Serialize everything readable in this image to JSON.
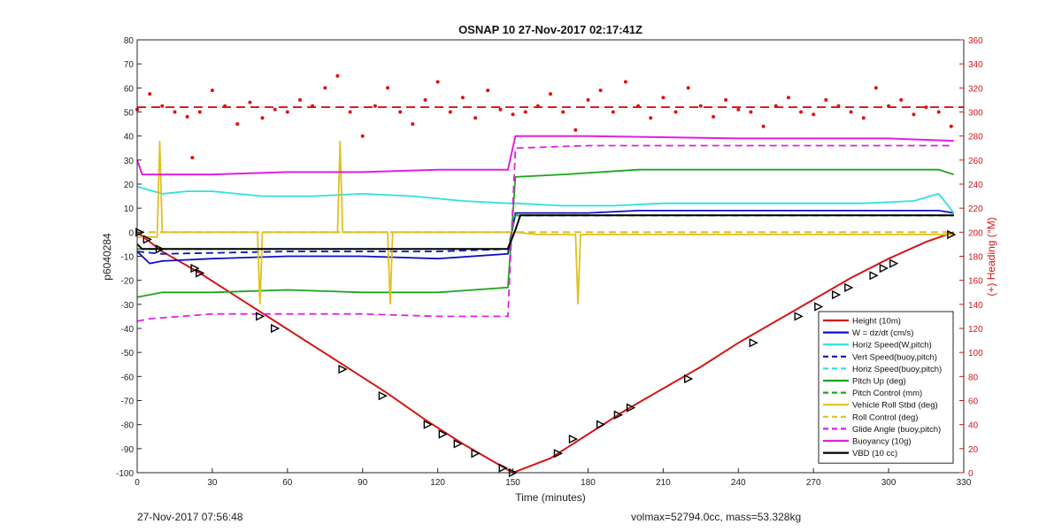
{
  "chart_data": {
    "type": "line",
    "title": "OSNAP 10 27-Nov-2017 02:17:41Z",
    "xlabel": "Time (minutes)",
    "ylabel": "p6040284",
    "ylabel_right": "(+) Heading (°M)",
    "xlim": [
      0,
      330
    ],
    "ylim": [
      -100,
      80
    ],
    "ylim_right": [
      0,
      360
    ],
    "xticks": [
      0,
      30,
      60,
      90,
      120,
      150,
      180,
      210,
      240,
      270,
      300,
      330
    ],
    "yticks": [
      -100,
      -90,
      -80,
      -70,
      -60,
      -50,
      -40,
      -30,
      -20,
      -10,
      0,
      10,
      20,
      30,
      40,
      50,
      60,
      70,
      80
    ],
    "yticks_right": [
      0,
      20,
      40,
      60,
      80,
      100,
      120,
      140,
      160,
      180,
      200,
      220,
      240,
      260,
      280,
      300,
      320,
      340,
      360
    ],
    "grid": false,
    "legend_position": "bottom-right",
    "colors": {
      "height": "#d41616",
      "w": "#1010c0",
      "horiz_speed": "#30e0e0",
      "pitch": "#1ca61c",
      "roll": "#e0c020",
      "glide": "#e020e0",
      "buoyancy": "#e020e0",
      "vbd": "#000000",
      "heading": "#e01010"
    },
    "series": [
      {
        "name": "Height (10m)",
        "key": "height",
        "style": "solid",
        "x": [
          0,
          10,
          25,
          40,
          55,
          70,
          85,
          100,
          115,
          130,
          145,
          150,
          165,
          180,
          195,
          210,
          225,
          240,
          255,
          270,
          285,
          300,
          315,
          326
        ],
        "y": [
          0,
          -8,
          -17,
          -27,
          -37,
          -47,
          -57,
          -67,
          -78,
          -88,
          -97,
          -100,
          -94,
          -84,
          -74,
          -65,
          -56,
          -46,
          -37,
          -28,
          -19,
          -11,
          -4,
          0
        ]
      },
      {
        "name": "W = dz/dt (cm/s)",
        "key": "w",
        "style": "solid",
        "x": [
          0,
          5,
          10,
          30,
          60,
          90,
          120,
          148,
          151,
          160,
          180,
          200,
          220,
          240,
          260,
          280,
          300,
          320,
          326
        ],
        "y": [
          -8,
          -13,
          -12,
          -11,
          -10,
          -10,
          -11,
          -9,
          8,
          8,
          8,
          9,
          9,
          9,
          9,
          9,
          9,
          9,
          8
        ]
      },
      {
        "name": "Horiz Speed(W,pitch)",
        "key": "horiz_speed",
        "style": "solid",
        "x": [
          0,
          10,
          20,
          30,
          50,
          70,
          90,
          110,
          130,
          148,
          151,
          170,
          190,
          210,
          230,
          250,
          270,
          290,
          310,
          320,
          326
        ],
        "y": [
          19,
          16,
          17,
          17,
          15,
          15,
          16,
          15,
          13,
          12,
          12,
          11,
          11,
          12,
          12,
          12,
          12,
          12,
          13,
          16,
          8
        ]
      },
      {
        "name": "Vert Speed(buoy,pitch)",
        "key": "w",
        "style": "dashed",
        "x": [
          0,
          10,
          60,
          120,
          148,
          151,
          200,
          260,
          326
        ],
        "y": [
          -8,
          -9,
          -8,
          -8,
          -7,
          7,
          7,
          7,
          7
        ]
      },
      {
        "name": "Horiz Speed(buoy,pitch)",
        "key": "horiz_speed",
        "style": "dashed",
        "x": [
          0,
          30,
          60,
          90,
          120,
          148,
          151,
          200,
          260,
          326
        ],
        "y": [
          0,
          0,
          0,
          0,
          0,
          0,
          0,
          0,
          0,
          0
        ]
      },
      {
        "name": "Pitch Up (deg)",
        "key": "pitch",
        "style": "solid",
        "x": [
          0,
          10,
          30,
          60,
          90,
          120,
          148,
          151,
          170,
          200,
          230,
          260,
          290,
          320,
          326
        ],
        "y": [
          -27,
          -25,
          -25,
          -24,
          -25,
          -25,
          -23,
          23,
          24,
          26,
          26,
          26,
          26,
          26,
          24
        ]
      },
      {
        "name": "Pitch Control (mm)",
        "key": "pitch",
        "style": "dashed",
        "x": [
          0,
          60,
          120,
          148,
          151,
          200,
          260,
          326
        ],
        "y": [
          -7,
          -7,
          -7,
          -7,
          7,
          7,
          7,
          7
        ]
      },
      {
        "name": "Vehicle Roll Stbd (deg)",
        "key": "roll",
        "style": "solid",
        "x": [
          0,
          8,
          9,
          10,
          30,
          48,
          49,
          50,
          80,
          81,
          82,
          100,
          101,
          102,
          125,
          150,
          151,
          160,
          175,
          176,
          177,
          200,
          250,
          300,
          326
        ],
        "y": [
          -2,
          -2,
          38,
          0,
          0,
          0,
          -30,
          0,
          0,
          38,
          0,
          0,
          -30,
          0,
          0,
          0,
          0,
          -1,
          -1,
          -30,
          -1,
          -1,
          -1,
          -1,
          -1
        ]
      },
      {
        "name": "Roll Control (deg)",
        "key": "roll",
        "style": "dashed",
        "x": [
          0,
          60,
          120,
          148,
          151,
          200,
          260,
          326
        ],
        "y": [
          0,
          0,
          0,
          0,
          0,
          0,
          0,
          0
        ]
      },
      {
        "name": "Glide Angle (buoy,pitch)",
        "key": "glide",
        "style": "dashed",
        "x": [
          0,
          5,
          30,
          60,
          90,
          120,
          148,
          151,
          180,
          210,
          240,
          270,
          300,
          326
        ],
        "y": [
          -37,
          -36,
          -34,
          -34,
          -34,
          -35,
          -35,
          35,
          36,
          36,
          36,
          36,
          36,
          36
        ]
      },
      {
        "name": "Buoyancy (10g)",
        "key": "buoyancy",
        "style": "solid",
        "x": [
          0,
          2,
          30,
          60,
          90,
          120,
          148,
          151,
          180,
          240,
          300,
          326
        ],
        "y": [
          30,
          24,
          24,
          25,
          25,
          26,
          26,
          40,
          40,
          39,
          39,
          38
        ]
      },
      {
        "name": "VBD (10 cc)",
        "key": "vbd",
        "style": "solid",
        "x": [
          0,
          2,
          148,
          151,
          153,
          326
        ],
        "y": [
          -5,
          -7,
          -7,
          1,
          7,
          7
        ]
      }
    ],
    "heading_series": {
      "name": "Heading",
      "axis": "right",
      "reference_value": 304,
      "x": [
        0,
        5,
        10,
        15,
        20,
        22,
        25,
        30,
        35,
        40,
        45,
        50,
        55,
        60,
        65,
        70,
        75,
        80,
        85,
        90,
        95,
        100,
        105,
        110,
        115,
        120,
        125,
        130,
        135,
        140,
        145,
        150,
        155,
        160,
        165,
        170,
        175,
        180,
        185,
        190,
        195,
        200,
        205,
        210,
        215,
        220,
        225,
        230,
        235,
        240,
        245,
        250,
        255,
        260,
        265,
        270,
        275,
        280,
        285,
        290,
        295,
        300,
        305,
        310,
        315,
        320,
        325
      ],
      "y": [
        302,
        315,
        305,
        300,
        296,
        262,
        300,
        318,
        305,
        290,
        308,
        295,
        302,
        300,
        310,
        305,
        320,
        330,
        300,
        280,
        305,
        320,
        300,
        290,
        310,
        325,
        300,
        312,
        295,
        318,
        302,
        298,
        300,
        305,
        315,
        300,
        285,
        310,
        318,
        300,
        325,
        305,
        295,
        312,
        300,
        320,
        305,
        296,
        310,
        302,
        300,
        288,
        305,
        312,
        300,
        298,
        310,
        305,
        300,
        295,
        320,
        305,
        310,
        298,
        304,
        300,
        288
      ]
    },
    "markers": {
      "x": [
        1,
        4,
        9,
        23,
        25,
        49,
        55,
        82,
        98,
        116,
        122,
        128,
        135,
        146,
        150,
        168,
        174,
        185,
        192,
        197,
        220,
        246,
        264,
        272,
        279,
        284,
        294,
        298,
        302,
        325
      ],
      "y": [
        0,
        -3,
        -7,
        -15,
        -17,
        -35,
        -40,
        -57,
        -68,
        -80,
        -84,
        -88,
        -92,
        -98,
        -100,
        -92,
        -86,
        -80,
        -76,
        -73,
        -61,
        -46,
        -35,
        -31,
        -26,
        -23,
        -18,
        -15,
        -13,
        -1
      ]
    }
  },
  "footer": {
    "left": "27-Nov-2017 07:56:48",
    "right": "volmax=52794.0cc, mass=53.328kg"
  }
}
